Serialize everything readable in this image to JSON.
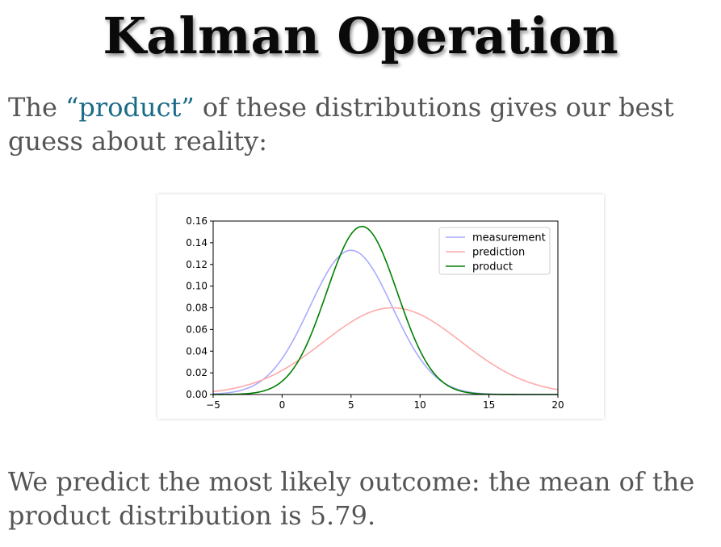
{
  "slide": {
    "title": "Kalman Operation",
    "intro_prefix": "The ",
    "intro_quoted": "“product”",
    "intro_suffix": " of these distributions gives our best guess about reality:",
    "conclusion": "We predict the most likely outcome: the mean of the product distribution is 5.79."
  },
  "colors": {
    "measurement": "#aaaaff",
    "prediction": "#ffaaaa",
    "product": "#008000",
    "link": "#1a6a86"
  },
  "chart_data": {
    "type": "line",
    "title": "",
    "xlabel": "",
    "ylabel": "",
    "xlim": [
      -5,
      20
    ],
    "ylim": [
      0,
      0.16
    ],
    "xticks": [
      -5,
      0,
      5,
      10,
      15,
      20
    ],
    "yticks": [
      0.0,
      0.02,
      0.04,
      0.06,
      0.08,
      0.1,
      0.12,
      0.14,
      0.16
    ],
    "xtick_labels": [
      "−5",
      "0",
      "5",
      "10",
      "15",
      "20"
    ],
    "ytick_labels": [
      "0.00",
      "0.02",
      "0.04",
      "0.06",
      "0.08",
      "0.10",
      "0.12",
      "0.14",
      "0.16"
    ],
    "legend_position": "top-right",
    "grid": false,
    "series": [
      {
        "name": "measurement",
        "color": "#aaaaff",
        "distribution": "normal",
        "mean": 5.0,
        "std": 3.0,
        "peak": 0.133
      },
      {
        "name": "prediction",
        "color": "#ffaaaa",
        "distribution": "normal",
        "mean": 8.0,
        "std": 5.0,
        "peak": 0.08
      },
      {
        "name": "product",
        "color": "#008000",
        "distribution": "normal",
        "mean": 5.79,
        "std": 2.57,
        "peak": 0.155
      }
    ]
  }
}
